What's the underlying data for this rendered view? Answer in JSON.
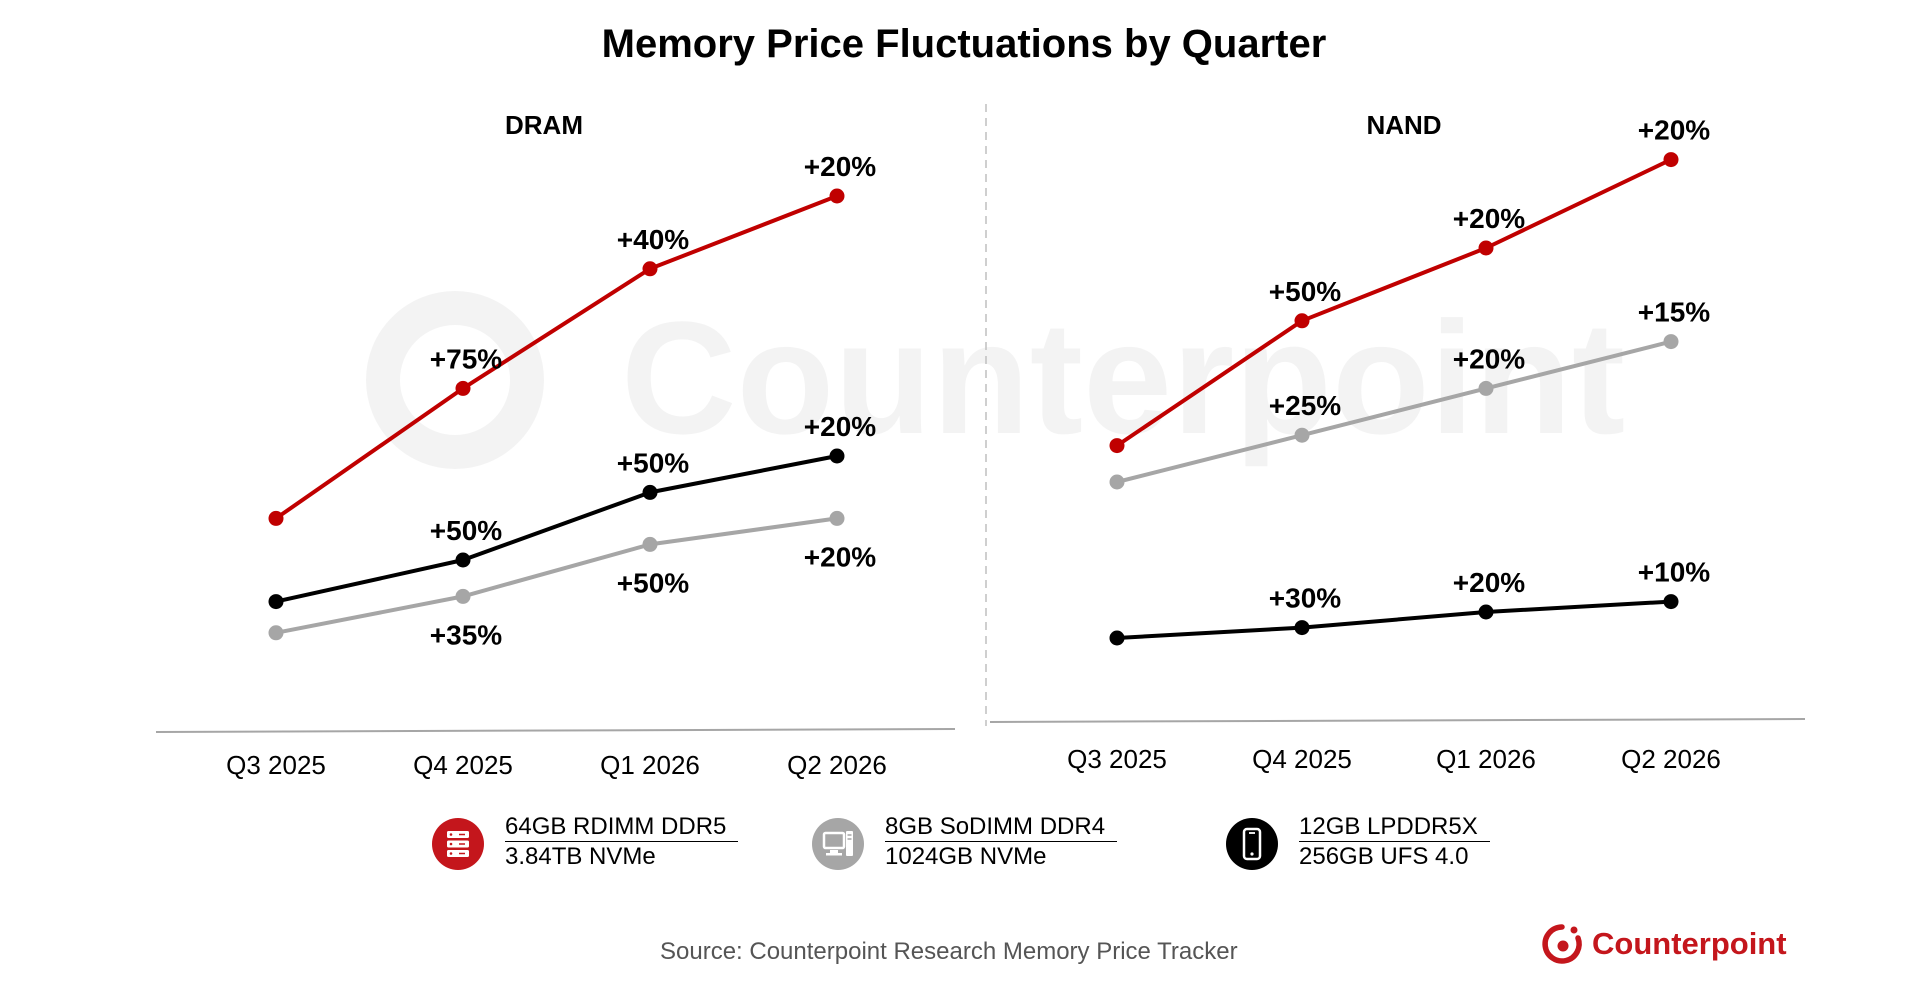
{
  "chart_data": [
    {
      "type": "line",
      "title": "DRAM",
      "categories": [
        "Q3 2025",
        "Q4 2025",
        "Q1 2026",
        "Q2 2026"
      ],
      "ylim": [
        0,
        100
      ],
      "series": [
        {
          "name": "64GB RDIMM DDR5 / 3.84TB NVMe",
          "color": "#c00000",
          "values": [
            33,
            58,
            81,
            95
          ],
          "labels": [
            "",
            "+75%",
            "+40%",
            "+20%"
          ],
          "label_pos": [
            "above",
            "above",
            "above",
            "above"
          ]
        },
        {
          "name": "12GB LPDDR5X / 256GB UFS 4.0",
          "color": "#000000",
          "values": [
            17,
            25,
            38,
            45
          ],
          "labels": [
            "",
            "+50%",
            "+50%",
            "+20%"
          ],
          "label_pos": [
            "above",
            "above",
            "above",
            "above"
          ]
        },
        {
          "name": "8GB SoDIMM DDR4 / 1024GB NVMe",
          "color": "#a6a6a6",
          "values": [
            11,
            18,
            28,
            33
          ],
          "labels": [
            "",
            "+35%",
            "+50%",
            "+20%"
          ],
          "label_pos": [
            "below",
            "below",
            "below",
            "below"
          ]
        }
      ]
    },
    {
      "type": "line",
      "title": "NAND",
      "categories": [
        "Q3 2025",
        "Q4 2025",
        "Q1 2026",
        "Q2 2026"
      ],
      "ylim": [
        0,
        100
      ],
      "series": [
        {
          "name": "64GB RDIMM DDR5 / 3.84TB NVMe",
          "color": "#c00000",
          "values": [
            47,
            71,
            85,
            102
          ],
          "labels": [
            "",
            "+50%",
            "+20%",
            "+20%"
          ],
          "label_pos": [
            "above",
            "above",
            "above",
            "above"
          ]
        },
        {
          "name": "8GB SoDIMM DDR4 / 1024GB NVMe",
          "color": "#a6a6a6",
          "values": [
            40,
            49,
            58,
            67
          ],
          "labels": [
            "",
            "+25%",
            "+20%",
            "+15%"
          ],
          "label_pos": [
            "above",
            "above",
            "above",
            "above"
          ]
        },
        {
          "name": "12GB LPDDR5X / 256GB UFS 4.0",
          "color": "#000000",
          "values": [
            10,
            12,
            15,
            17
          ],
          "labels": [
            "",
            "+30%",
            "+20%",
            "+10%"
          ],
          "label_pos": [
            "above",
            "above",
            "above",
            "above"
          ]
        }
      ]
    }
  ],
  "title": "Memory Price Fluctuations by Quarter",
  "legend": [
    {
      "line1": "64GB RDIMM DDR5",
      "line2": "3.84TB NVMe",
      "icon": "server-icon",
      "color": "#c4161c"
    },
    {
      "line1": "8GB SoDIMM DDR4",
      "line2": "1024GB NVMe",
      "icon": "desktop-computer-icon",
      "color": "#a6a6a6"
    },
    {
      "line1": "12GB LPDDR5X",
      "line2": "256GB UFS 4.0",
      "icon": "smartphone-icon",
      "color": "#000000"
    }
  ],
  "source": "Source: Counterpoint Research Memory Price Tracker",
  "brand": "Counterpoint",
  "watermark": "Counterpoint"
}
